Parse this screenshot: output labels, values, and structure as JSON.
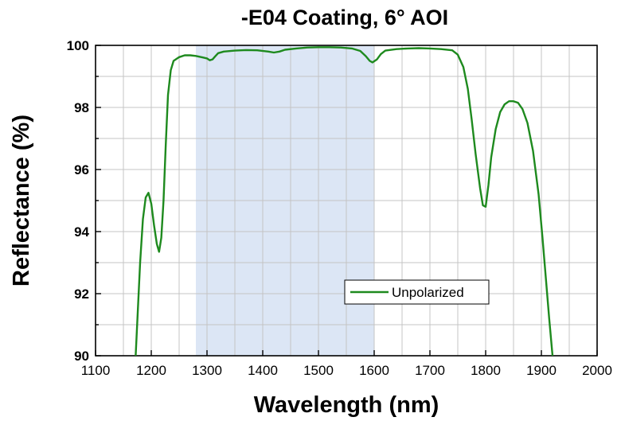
{
  "chart_data": {
    "type": "line",
    "title": "-E04 Coating, 6° AOI",
    "xlabel": "Wavelength (nm)",
    "ylabel": "Reflectance (%)",
    "xlim": [
      1100,
      2000
    ],
    "ylim": [
      90,
      100
    ],
    "xticks": [
      1100,
      1200,
      1300,
      1400,
      1500,
      1600,
      1700,
      1800,
      1900,
      2000
    ],
    "yticks": [
      90,
      92,
      94,
      96,
      98,
      100
    ],
    "x_tick_labels": [
      "1100",
      "1200",
      "1300",
      "1400",
      "1500",
      "1600",
      "1700",
      "1800",
      "1900",
      "2000"
    ],
    "y_tick_labels": [
      "90",
      "92",
      "94",
      "96",
      "98",
      "100"
    ],
    "grid": true,
    "shaded_region": {
      "x_start": 1280,
      "x_end": 1600,
      "color": "#dce6f5"
    },
    "legend": {
      "placement": "bottom-center",
      "entries": [
        "Unpolarized"
      ]
    },
    "series": [
      {
        "name": "Unpolarized",
        "color": "#1e8a1e",
        "points": [
          [
            1172,
            90.0
          ],
          [
            1176,
            91.5
          ],
          [
            1180,
            93.0
          ],
          [
            1185,
            94.4
          ],
          [
            1190,
            95.1
          ],
          [
            1195,
            95.25
          ],
          [
            1200,
            94.9
          ],
          [
            1205,
            94.2
          ],
          [
            1210,
            93.6
          ],
          [
            1214,
            93.35
          ],
          [
            1218,
            93.8
          ],
          [
            1222,
            95.0
          ],
          [
            1226,
            96.8
          ],
          [
            1230,
            98.4
          ],
          [
            1235,
            99.2
          ],
          [
            1240,
            99.5
          ],
          [
            1250,
            99.62
          ],
          [
            1260,
            99.68
          ],
          [
            1270,
            99.68
          ],
          [
            1280,
            99.66
          ],
          [
            1290,
            99.62
          ],
          [
            1300,
            99.58
          ],
          [
            1305,
            99.52
          ],
          [
            1310,
            99.55
          ],
          [
            1315,
            99.65
          ],
          [
            1320,
            99.75
          ],
          [
            1330,
            99.8
          ],
          [
            1350,
            99.83
          ],
          [
            1370,
            99.85
          ],
          [
            1390,
            99.84
          ],
          [
            1410,
            99.8
          ],
          [
            1420,
            99.77
          ],
          [
            1430,
            99.8
          ],
          [
            1440,
            99.86
          ],
          [
            1460,
            99.9
          ],
          [
            1480,
            99.93
          ],
          [
            1500,
            99.94
          ],
          [
            1520,
            99.94
          ],
          [
            1540,
            99.93
          ],
          [
            1560,
            99.9
          ],
          [
            1575,
            99.82
          ],
          [
            1585,
            99.65
          ],
          [
            1592,
            99.5
          ],
          [
            1597,
            99.45
          ],
          [
            1605,
            99.55
          ],
          [
            1612,
            99.72
          ],
          [
            1620,
            99.83
          ],
          [
            1640,
            99.88
          ],
          [
            1660,
            99.9
          ],
          [
            1680,
            99.91
          ],
          [
            1700,
            99.9
          ],
          [
            1720,
            99.88
          ],
          [
            1740,
            99.84
          ],
          [
            1750,
            99.7
          ],
          [
            1760,
            99.3
          ],
          [
            1768,
            98.6
          ],
          [
            1775,
            97.6
          ],
          [
            1782,
            96.5
          ],
          [
            1790,
            95.4
          ],
          [
            1795,
            94.85
          ],
          [
            1800,
            94.8
          ],
          [
            1805,
            95.5
          ],
          [
            1810,
            96.4
          ],
          [
            1818,
            97.3
          ],
          [
            1826,
            97.85
          ],
          [
            1834,
            98.1
          ],
          [
            1842,
            98.2
          ],
          [
            1850,
            98.2
          ],
          [
            1858,
            98.15
          ],
          [
            1866,
            97.95
          ],
          [
            1875,
            97.5
          ],
          [
            1885,
            96.6
          ],
          [
            1895,
            95.2
          ],
          [
            1902,
            93.8
          ],
          [
            1908,
            92.5
          ],
          [
            1914,
            91.2
          ],
          [
            1920,
            90.0
          ]
        ]
      }
    ]
  }
}
